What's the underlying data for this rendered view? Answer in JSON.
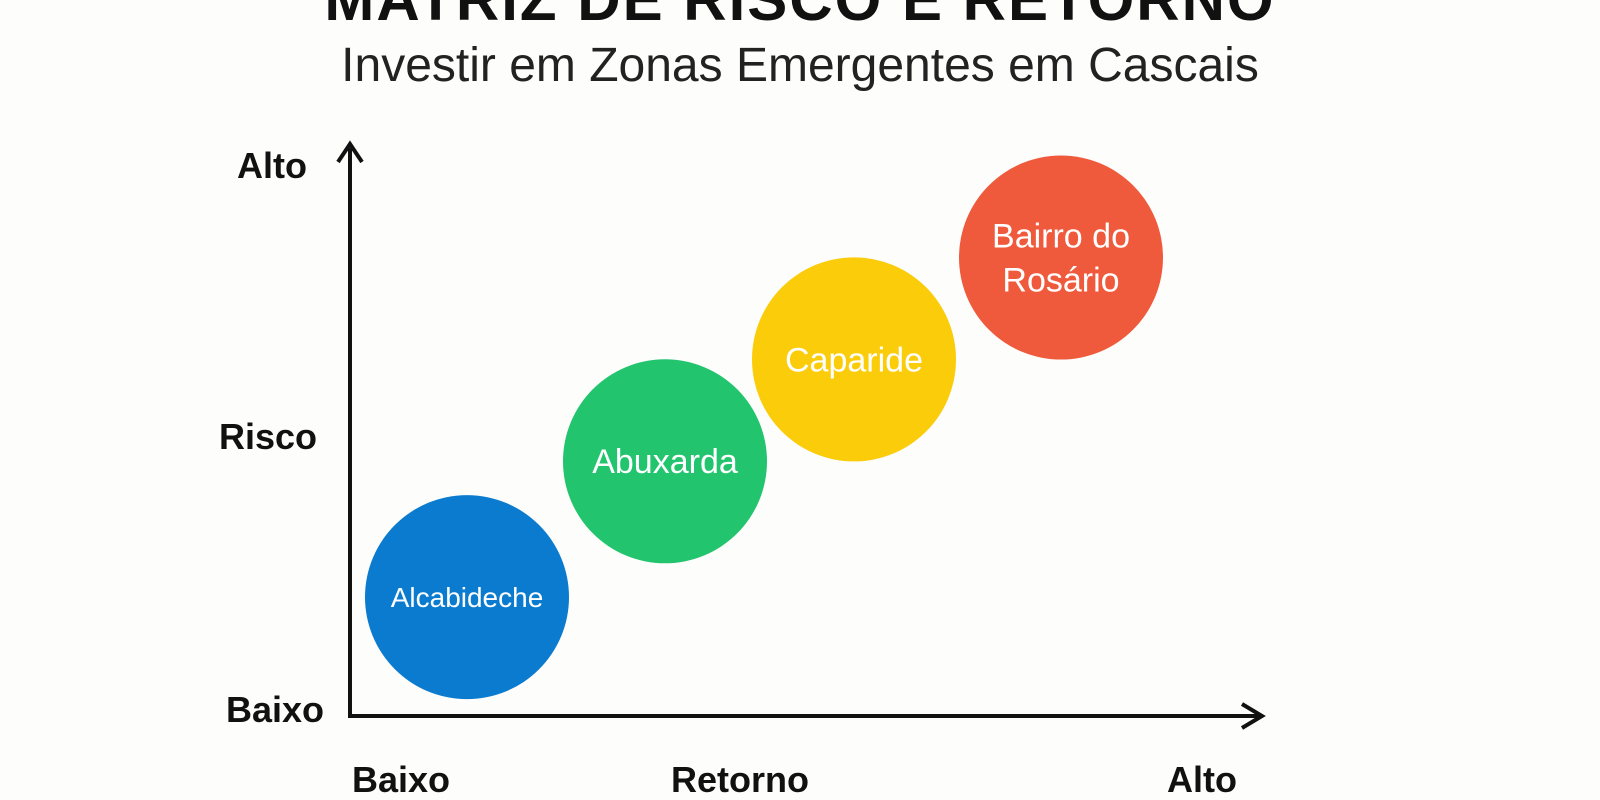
{
  "title": "MATRIZ DE RISCO E RETORNO",
  "subtitle": "Investir em Zonas Emergentes em Cascais",
  "chart_data": {
    "type": "scatter",
    "x_axis": {
      "label": "Retorno",
      "low_label": "Baixo",
      "high_label": "Alto",
      "range": [
        0,
        10
      ]
    },
    "y_axis": {
      "label": "Risco",
      "low_label": "Baixo",
      "high_label": "Alto",
      "range": [
        0,
        10
      ]
    },
    "grid": false,
    "legend": "none",
    "points": [
      {
        "label": "Alcabideche",
        "x": 1.3,
        "y": 2.1,
        "color": "#0b7bd0"
      },
      {
        "label": "Abuxarda",
        "x": 3.5,
        "y": 4.5,
        "color": "#22c46e"
      },
      {
        "label": "Caparide",
        "x": 5.6,
        "y": 6.3,
        "color": "#fbcc0a"
      },
      {
        "label": "Bairro do Rosário",
        "x": 7.9,
        "y": 8.1,
        "color": "#f05a3c"
      }
    ]
  }
}
